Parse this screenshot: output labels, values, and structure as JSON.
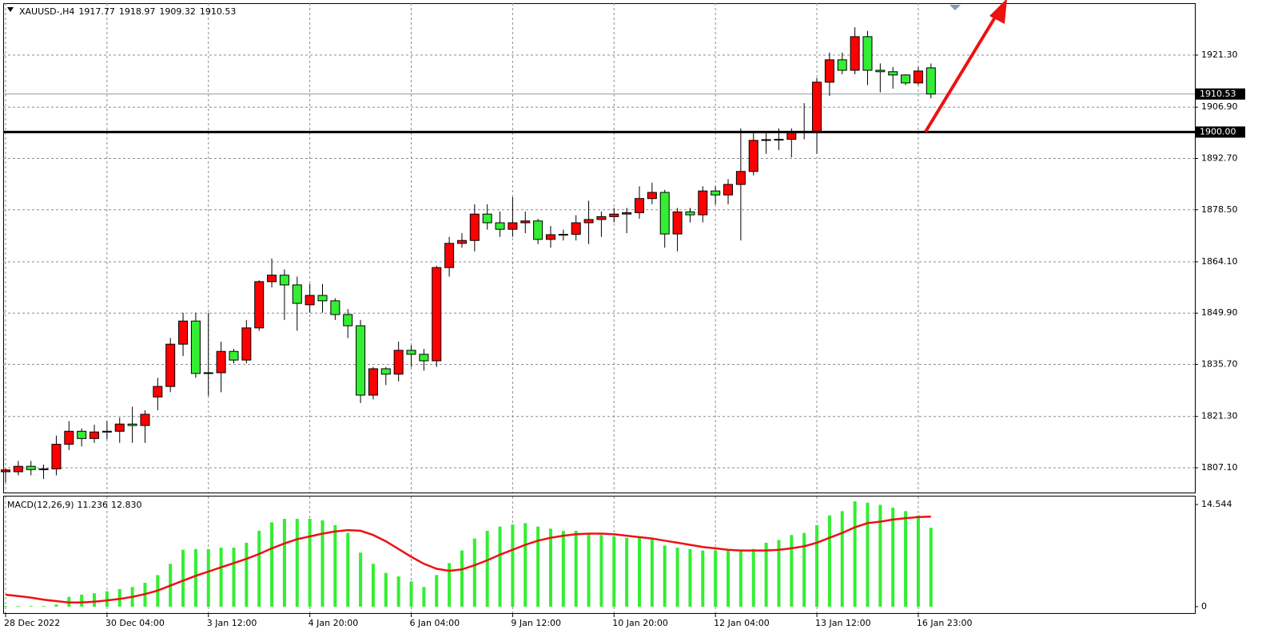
{
  "chart_data": [
    {
      "type": "candlestick",
      "header": {
        "symbol": "XAUUSD-,H4",
        "ohlc": [
          1917.77,
          1918.97,
          1909.32,
          1910.53
        ]
      },
      "categories": [
        "28 Dec 2022",
        null,
        null,
        null,
        null,
        null,
        null,
        null,
        "30 Dec 04:00",
        null,
        null,
        null,
        null,
        null,
        null,
        null,
        "3 Jan 12:00",
        null,
        null,
        null,
        null,
        null,
        null,
        null,
        "4 Jan 20:00",
        null,
        null,
        null,
        null,
        null,
        null,
        null,
        "6 Jan 04:00",
        null,
        null,
        null,
        null,
        null,
        null,
        null,
        "9 Jan 12:00",
        null,
        null,
        null,
        null,
        null,
        null,
        null,
        "10 Jan 20:00",
        null,
        null,
        null,
        null,
        null,
        null,
        null,
        "12 Jan 04:00",
        null,
        null,
        null,
        null,
        null,
        null,
        null,
        "13 Jan 12:00",
        null,
        null,
        null,
        null,
        null,
        null,
        null,
        "16 Jan 23:00",
        null
      ],
      "open": [
        1806,
        1806,
        1807.5,
        1806.6,
        1806.8,
        1813.6,
        1817.2,
        1815.2,
        1817,
        1817.2,
        1819.2,
        1818.8,
        1826.7,
        1829.6,
        1841.3,
        1847.7,
        1833.2,
        1833.4,
        1839.3,
        1836.9,
        1845.8,
        1858.6,
        1860.4,
        1857.7,
        1852.2,
        1854.8,
        1853.3,
        1849.5,
        1846.4,
        1827.2,
        1834.5,
        1833,
        1839.6,
        1838.5,
        1836.7,
        1862.5,
        1869.2,
        1870,
        1877.3,
        1874.9,
        1873.1,
        1874.9,
        1875.4,
        1870.3,
        1871.6,
        1871.7,
        1874.9,
        1875.8,
        1876.6,
        1877.3,
        1877.7,
        1881.6,
        1883.3,
        1871.8,
        1877.9,
        1877.1,
        1883.7,
        1882.6,
        1885.5,
        1889.1,
        1897.7,
        1897.9,
        1898,
        1899.9,
        1900.1,
        1913.8,
        1920,
        1917.1,
        1926.4,
        1917.1,
        1916.7,
        1915.8,
        1913.6,
        1917.77
      ],
      "high": [
        1807,
        1809,
        1809,
        1808,
        1816,
        1820,
        1818,
        1819,
        1820,
        1821,
        1824,
        1823,
        1832,
        1843,
        1850,
        1850,
        1850,
        1842,
        1840,
        1848,
        1859,
        1865,
        1862,
        1860,
        1858,
        1858,
        1854,
        1851,
        1848,
        1835,
        1835,
        1842,
        1841,
        1840,
        1863,
        1871,
        1872,
        1880,
        1880,
        1878,
        1882,
        1878,
        1876,
        1874,
        1873,
        1877,
        1881,
        1878,
        1879,
        1879,
        1885,
        1886,
        1884,
        1879,
        1879,
        1885,
        1885,
        1887,
        1901,
        1900,
        1900,
        1901,
        1901,
        1908,
        1915,
        1922,
        1922,
        1929,
        1928,
        1919,
        1918,
        1916,
        1918,
        1918.97
      ],
      "low": [
        1803,
        1805,
        1805,
        1804,
        1805,
        1812,
        1813,
        1814,
        1815,
        1814,
        1814,
        1814,
        1823,
        1828,
        1838,
        1832,
        1827,
        1828,
        1836,
        1836,
        1845,
        1857,
        1848,
        1845,
        1850,
        1850,
        1848,
        1843,
        1825,
        1826,
        1830,
        1831,
        1835,
        1834,
        1835,
        1860,
        1868,
        1867,
        1873,
        1871,
        1871,
        1872,
        1869,
        1868,
        1870,
        1870,
        1869,
        1871,
        1875,
        1872,
        1876,
        1880,
        1868,
        1867,
        1875,
        1875,
        1880,
        1880,
        1870,
        1888,
        1894,
        1895,
        1893,
        1898,
        1894,
        1910,
        1916,
        1916,
        1913,
        1911,
        1912,
        1913,
        1913,
        1909.32
      ],
      "close": [
        1806.5,
        1807.5,
        1806.6,
        1806.8,
        1813.6,
        1817.2,
        1815.2,
        1817,
        1817.2,
        1819.2,
        1818.8,
        1821.9,
        1829.6,
        1841.3,
        1847.7,
        1833.2,
        1833.4,
        1839.3,
        1836.9,
        1845.8,
        1858.6,
        1860.4,
        1857.7,
        1852.6,
        1854.8,
        1853.3,
        1849.5,
        1846.4,
        1827.2,
        1834.5,
        1833,
        1839.6,
        1838.5,
        1836.7,
        1862.5,
        1869.2,
        1870,
        1877.3,
        1874.9,
        1873.1,
        1874.9,
        1875.4,
        1870.3,
        1871.6,
        1871.7,
        1874.9,
        1875.8,
        1876.6,
        1877.3,
        1877.7,
        1881.6,
        1883.3,
        1871.8,
        1877.9,
        1877.1,
        1883.7,
        1882.6,
        1885.5,
        1889.1,
        1897.7,
        1897.9,
        1898,
        1899.9,
        1900.1,
        1913.8,
        1920,
        1917.1,
        1926.4,
        1917.1,
        1916.7,
        1915.8,
        1913.6,
        1916.9,
        1910.53
      ],
      "up_color": "#ff0000",
      "down_color": "#33ee33",
      "ylim": [
        1800.25,
        1935.66
      ],
      "yticks": [
        {
          "value": 1807.1,
          "label": "1807.10"
        },
        {
          "value": 1821.3,
          "label": "1821.30"
        },
        {
          "value": 1835.7,
          "label": "1835.70"
        },
        {
          "value": 1849.9,
          "label": "1849.90"
        },
        {
          "value": 1864.1,
          "label": "1864.10"
        },
        {
          "value": 1878.5,
          "label": "1878.50"
        },
        {
          "value": 1892.7,
          "label": "1892.70"
        },
        {
          "value": 1906.9,
          "label": "1906.90"
        },
        {
          "value": 1921.3,
          "label": "1921.30"
        }
      ],
      "hline": {
        "value": 1900,
        "label": "1900.00"
      },
      "price_marker": 1910.53,
      "grid": true
    },
    {
      "type": "macd",
      "title": "MACD(12,26,9)",
      "header_values": [
        11.236,
        {
          "value": 12.83,
          "label": "12.830"
        }
      ],
      "histogram": {
        "color": "#33ee33",
        "values": [
          0.1,
          0.1,
          0.1,
          0.1,
          0.3,
          1.4,
          1.7,
          1.9,
          2.2,
          2.5,
          2.8,
          3.4,
          4.5,
          6.1,
          8.1,
          8.2,
          8.2,
          8.4,
          8.4,
          9.1,
          10.8,
          12,
          12.5,
          12.5,
          12.5,
          12.3,
          11.6,
          10.5,
          7.7,
          6.1,
          4.8,
          4.3,
          3.6,
          2.8,
          4.5,
          6.2,
          8,
          9.7,
          10.8,
          11.4,
          11.7,
          11.9,
          11.4,
          11.1,
          10.8,
          10.8,
          10.5,
          10.2,
          10,
          9.8,
          9.8,
          9.8,
          8.7,
          8.4,
          8.2,
          8,
          8,
          8,
          8,
          8.2,
          9.1,
          9.5,
          10.2,
          10.5,
          11.6,
          13,
          13.6,
          15,
          14.8,
          14.5,
          14.1,
          13.6,
          13,
          11.236
        ]
      },
      "signal": {
        "color": "#ee1111",
        "values": [
          1.7,
          1.5,
          1.3,
          1,
          0.8,
          0.6,
          0.6,
          0.7,
          0.9,
          1.1,
          1.4,
          1.8,
          2.3,
          3,
          3.7,
          4.4,
          5,
          5.6,
          6.2,
          6.8,
          7.5,
          8.3,
          9,
          9.6,
          10,
          10.4,
          10.7,
          10.9,
          10.8,
          10.2,
          9.3,
          8.2,
          7.1,
          6.1,
          5.4,
          5.1,
          5.3,
          5.9,
          6.6,
          7.4,
          8.1,
          8.8,
          9.4,
          9.8,
          10.1,
          10.3,
          10.4,
          10.4,
          10.3,
          10.1,
          9.9,
          9.7,
          9.4,
          9.1,
          8.8,
          8.5,
          8.3,
          8.1,
          8,
          8,
          8,
          8.1,
          8.3,
          8.6,
          9.1,
          9.8,
          10.5,
          11.3,
          11.9,
          12.1,
          12.4,
          12.6,
          12.75,
          12.83
        ]
      },
      "ylim": [
        -0.91,
        15.68
      ],
      "yticks": [
        0,
        14.544
      ]
    }
  ]
}
